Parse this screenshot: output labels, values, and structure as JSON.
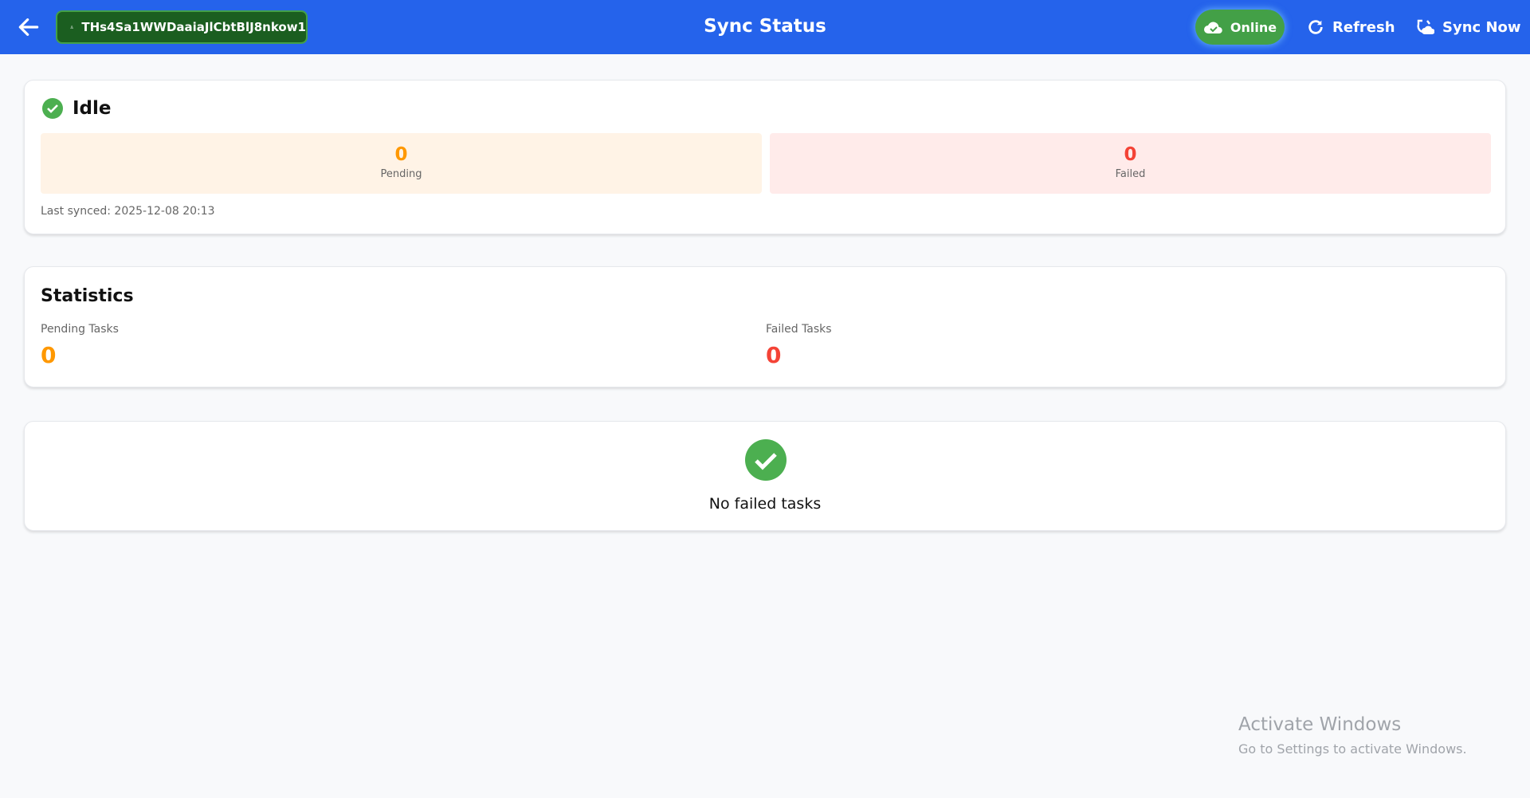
{
  "header": {
    "title": "Sync Status",
    "user_id": "THs4Sa1WWDaaiaJlCbtBlJ8nkow1",
    "online_label": "Online",
    "refresh_label": "Refresh",
    "sync_now_label": "Sync Now",
    "icons": [
      "arrow-left",
      "user",
      "cloud-check",
      "refresh",
      "sync-cloud"
    ]
  },
  "status": {
    "label": "Idle",
    "pending_value": "0",
    "pending_label": "Pending",
    "failed_value": "0",
    "failed_label": "Failed",
    "last_synced": "Last synced: 2025-12-08 20:13"
  },
  "statistics": {
    "title": "Statistics",
    "pending_label": "Pending Tasks",
    "pending_value": "0",
    "failed_label": "Failed Tasks",
    "failed_value": "0"
  },
  "failed_tasks": {
    "empty_message": "No failed tasks"
  },
  "watermark": {
    "title": "Activate Windows",
    "subtitle": "Go to Settings to activate Windows."
  },
  "colors": {
    "header": "#2563eb",
    "success": "#4caf50",
    "pending": "#ff9800",
    "failed": "#f44336",
    "pending_bg": "#fff3e6",
    "failed_bg": "#ffebea"
  }
}
